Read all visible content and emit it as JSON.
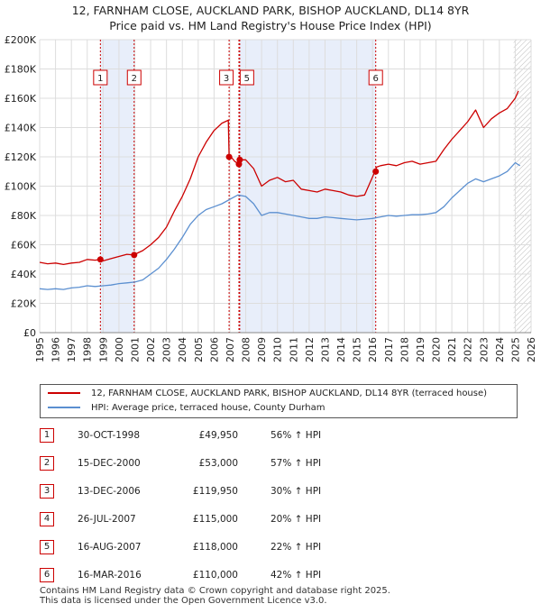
{
  "title_line1": "12, FARNHAM CLOSE, AUCKLAND PARK, BISHOP AUCKLAND, DL14 8YR",
  "title_line2": "Price paid vs. HM Land Registry's House Price Index (HPI)",
  "legend": {
    "property": "12, FARNHAM CLOSE, AUCKLAND PARK, BISHOP AUCKLAND, DL14 8YR (terraced house)",
    "hpi": "HPI: Average price, terraced house, County Durham"
  },
  "sales": [
    {
      "num": "1",
      "date": "30-OCT-1998",
      "price": "£49,950",
      "hpi": "56% ↑ HPI"
    },
    {
      "num": "2",
      "date": "15-DEC-2000",
      "price": "£53,000",
      "hpi": "57% ↑ HPI"
    },
    {
      "num": "3",
      "date": "13-DEC-2006",
      "price": "£119,950",
      "hpi": "30% ↑ HPI"
    },
    {
      "num": "4",
      "date": "26-JUL-2007",
      "price": "£115,000",
      "hpi": "20% ↑ HPI"
    },
    {
      "num": "5",
      "date": "16-AUG-2007",
      "price": "£118,000",
      "hpi": "22% ↑ HPI"
    },
    {
      "num": "6",
      "date": "16-MAR-2016",
      "price": "£110,000",
      "hpi": "42% ↑ HPI"
    }
  ],
  "footer_line1": "Contains HM Land Registry data © Crown copyright and database right 2025.",
  "footer_line2": "This data is licensed under the Open Government Licence v3.0.",
  "colors": {
    "property": "#cc0000",
    "hpi": "#5b8fd0",
    "shade": "#e8eefa",
    "grid": "#dddddd"
  },
  "chart_data": {
    "type": "line",
    "title": "12, FARNHAM CLOSE, AUCKLAND PARK, BISHOP AUCKLAND, DL14 8YR — Price paid vs. HM Land Registry's House Price Index (HPI)",
    "xlabel": "",
    "ylabel": "",
    "xlim": [
      1995,
      2026
    ],
    "ylim": [
      0,
      200000
    ],
    "x_ticks": [
      1995,
      1996,
      1997,
      1998,
      1999,
      2000,
      2001,
      2002,
      2003,
      2004,
      2005,
      2006,
      2007,
      2008,
      2009,
      2010,
      2011,
      2012,
      2013,
      2014,
      2015,
      2016,
      2017,
      2018,
      2019,
      2020,
      2021,
      2022,
      2023,
      2024,
      2025,
      2026
    ],
    "y_ticks": [
      0,
      20000,
      40000,
      60000,
      80000,
      100000,
      120000,
      140000,
      160000,
      180000,
      200000
    ],
    "y_tick_labels": [
      "£0",
      "£20K",
      "£40K",
      "£60K",
      "£80K",
      "£100K",
      "£120K",
      "£140K",
      "£160K",
      "£180K",
      "£200K"
    ],
    "shaded_ranges": [
      [
        1998.83,
        2000.96
      ],
      [
        2007.58,
        2016.2
      ]
    ],
    "hatched_range": [
      2024.9,
      2026
    ],
    "series": [
      {
        "name": "12, FARNHAM CLOSE, AUCKLAND PARK, BISHOP AUCKLAND, DL14 8YR (terraced house)",
        "color": "#cc0000",
        "x": [
          1995,
          1995.5,
          1996,
          1996.5,
          1997,
          1997.5,
          1998,
          1998.5,
          1998.83,
          1999,
          1999.5,
          2000,
          2000.5,
          2000.96,
          2001,
          2001.5,
          2002,
          2002.5,
          2003,
          2003.5,
          2004,
          2004.5,
          2005,
          2005.5,
          2006,
          2006.5,
          2006.9,
          2006.95,
          2007,
          2007.3,
          2007.57,
          2007.62,
          2008,
          2008.5,
          2009,
          2009.5,
          2010,
          2010.5,
          2011,
          2011.5,
          2012,
          2012.5,
          2013,
          2013.5,
          2014,
          2014.5,
          2015,
          2015.5,
          2016.15,
          2016.25,
          2016.5,
          2017,
          2017.5,
          2018,
          2018.5,
          2019,
          2019.5,
          2020,
          2020.5,
          2021,
          2021.5,
          2022,
          2022.5,
          2023,
          2023.5,
          2024,
          2024.5,
          2025,
          2025.2
        ],
        "y": [
          48000,
          47000,
          47500,
          46500,
          47500,
          48000,
          50000,
          49500,
          49950,
          49000,
          50500,
          52000,
          53500,
          53000,
          53500,
          56000,
          60000,
          65000,
          72000,
          83000,
          93000,
          105000,
          120000,
          130000,
          138000,
          143000,
          145000,
          119950,
          121000,
          117000,
          115000,
          118000,
          118000,
          112000,
          100000,
          104000,
          106000,
          103000,
          104000,
          98000,
          97000,
          96000,
          98000,
          97000,
          96000,
          94000,
          93000,
          94000,
          110000,
          113000,
          114000,
          115000,
          114000,
          116000,
          117000,
          115000,
          116000,
          117000,
          125000,
          132000,
          138000,
          144000,
          152000,
          140000,
          146000,
          150000,
          153000,
          160000,
          165000
        ]
      },
      {
        "name": "HPI: Average price, terraced house, County Durham",
        "color": "#5b8fd0",
        "x": [
          1995,
          1995.5,
          1996,
          1996.5,
          1997,
          1997.5,
          1998,
          1998.5,
          1999,
          1999.5,
          2000,
          2000.5,
          2001,
          2001.5,
          2002,
          2002.5,
          2003,
          2003.5,
          2004,
          2004.5,
          2005,
          2005.5,
          2006,
          2006.5,
          2007,
          2007.5,
          2008,
          2008.5,
          2009,
          2009.5,
          2010,
          2010.5,
          2011,
          2011.5,
          2012,
          2012.5,
          2013,
          2013.5,
          2014,
          2014.5,
          2015,
          2015.5,
          2016,
          2016.5,
          2017,
          2017.5,
          2018,
          2018.5,
          2019,
          2019.5,
          2020,
          2020.5,
          2021,
          2021.5,
          2022,
          2022.5,
          2023,
          2023.5,
          2024,
          2024.5,
          2025,
          2025.3
        ],
        "y": [
          30000,
          29500,
          30000,
          29500,
          30500,
          31000,
          32000,
          31500,
          32000,
          32500,
          33500,
          34000,
          34500,
          36000,
          40000,
          44000,
          50000,
          57000,
          65000,
          74000,
          80000,
          84000,
          86000,
          88000,
          91000,
          94000,
          93000,
          88000,
          80000,
          82000,
          82000,
          81000,
          80000,
          79000,
          78000,
          78000,
          79000,
          78500,
          78000,
          77500,
          77000,
          77500,
          78000,
          79000,
          80000,
          79500,
          80000,
          80500,
          80500,
          81000,
          82000,
          86000,
          92000,
          97000,
          102000,
          105000,
          103000,
          105000,
          107000,
          110000,
          116000,
          114000
        ]
      }
    ],
    "sale_markers": [
      {
        "label": "1",
        "x": 1998.83,
        "y": 49950
      },
      {
        "label": "2",
        "x": 2000.96,
        "y": 53000
      },
      {
        "label": "3",
        "x": 2006.95,
        "y": 119950
      },
      {
        "label": "4",
        "x": 2007.57,
        "y": 115000
      },
      {
        "label": "5",
        "x": 2007.62,
        "y": 118000
      },
      {
        "label": "6",
        "x": 2016.2,
        "y": 110000
      }
    ]
  }
}
